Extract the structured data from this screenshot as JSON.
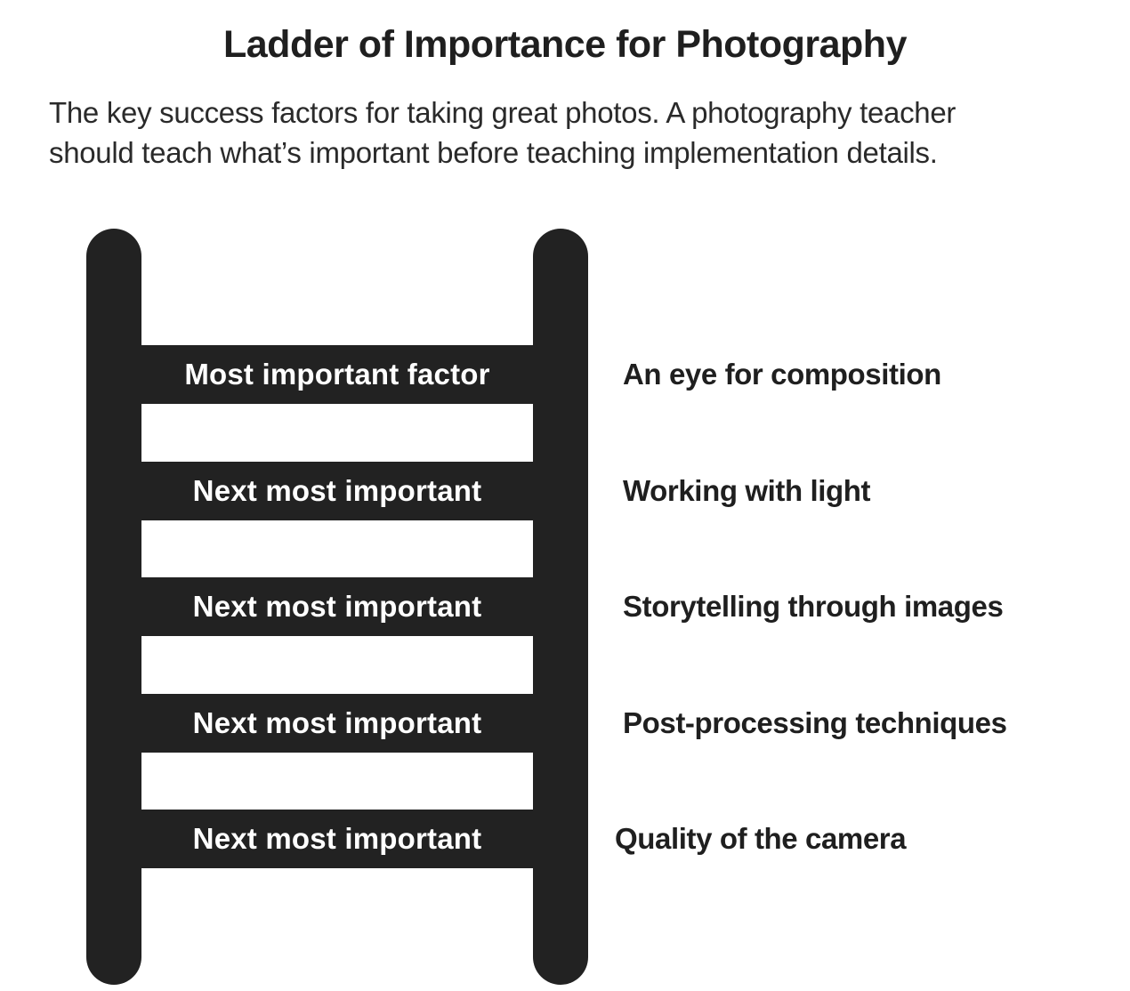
{
  "header": {
    "title": "Ladder of Importance for Photography",
    "subtitle_line1": "The key success factors for taking great photos. A photography teacher",
    "subtitle_line2": "should teach what’s important before teaching implementation details."
  },
  "ladder": {
    "rungs": [
      {
        "label": "Most important factor",
        "factor": "An eye for composition"
      },
      {
        "label": "Next most important",
        "factor": "Working with light"
      },
      {
        "label": "Next most important",
        "factor": "Storytelling through images"
      },
      {
        "label": "Next most important",
        "factor": "Post-processing techniques"
      },
      {
        "label": "Next most important",
        "factor": "Quality of the camera"
      }
    ]
  },
  "colors": {
    "ladder": "#222222",
    "text": "#1f1f1f",
    "background": "#ffffff"
  }
}
